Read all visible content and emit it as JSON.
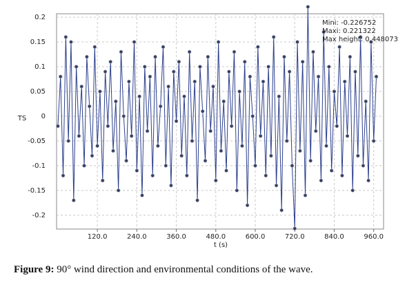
{
  "chart_data": {
    "type": "line",
    "y_label": "TS",
    "x_label": "t (s)",
    "annotations": [
      "Mini: -0.226752",
      "Maxi: 0.221322",
      "Max height: 0.448073"
    ],
    "caption_label": "Figure 9:",
    "caption_text": "90° wind direction and environmental conditions of the wave.",
    "xlim": [
      -4,
      990
    ],
    "ylim": [
      -0.228,
      0.207
    ],
    "grid": true,
    "xticks": [
      {
        "value": 120,
        "label": "120.0"
      },
      {
        "value": 240,
        "label": "240.0"
      },
      {
        "value": 360,
        "label": "360.0"
      },
      {
        "value": 480,
        "label": "480.0"
      },
      {
        "value": 600,
        "label": "600.0"
      },
      {
        "value": 720,
        "label": "720.0"
      },
      {
        "value": 840,
        "label": "840.0"
      },
      {
        "value": 960,
        "label": "960.0"
      }
    ],
    "yticks": [
      0.2,
      0.15,
      0.1,
      0.05,
      0,
      -0.05,
      -0.1,
      -0.15,
      -0.2
    ],
    "x": [
      0,
      8,
      16,
      24,
      32,
      40,
      48,
      56,
      64,
      72,
      80,
      88,
      96,
      104,
      112,
      120,
      128,
      136,
      144,
      152,
      160,
      168,
      176,
      184,
      192,
      200,
      208,
      216,
      224,
      232,
      240,
      248,
      256,
      264,
      272,
      280,
      288,
      296,
      304,
      312,
      320,
      328,
      336,
      344,
      352,
      360,
      368,
      376,
      384,
      392,
      400,
      408,
      416,
      424,
      432,
      440,
      448,
      456,
      464,
      472,
      480,
      488,
      496,
      504,
      512,
      520,
      528,
      536,
      544,
      552,
      560,
      568,
      576,
      584,
      592,
      600,
      608,
      616,
      624,
      632,
      640,
      648,
      656,
      664,
      672,
      680,
      688,
      696,
      704,
      712,
      720,
      728,
      736,
      744,
      752,
      760,
      768,
      776,
      784,
      792,
      800,
      808,
      816,
      824,
      832,
      840,
      848,
      856,
      864,
      872,
      880,
      888,
      896,
      904,
      912,
      920,
      928,
      936,
      944,
      952,
      960,
      968
    ],
    "series": [
      {
        "color": "#2b3f8c",
        "values": [
          -0.02,
          0.08,
          -0.12,
          0.16,
          -0.05,
          0.15,
          -0.17,
          0.1,
          -0.04,
          0.06,
          -0.1,
          0.12,
          0.02,
          -0.08,
          0.14,
          -0.06,
          0.05,
          -0.13,
          0.09,
          -0.02,
          0.11,
          -0.07,
          0.03,
          -0.15,
          0.13,
          0.0,
          -0.09,
          0.07,
          -0.04,
          0.15,
          -0.11,
          0.04,
          -0.16,
          0.1,
          -0.03,
          0.08,
          -0.12,
          0.12,
          -0.06,
          0.02,
          0.14,
          -0.1,
          0.06,
          -0.14,
          0.09,
          -0.01,
          0.11,
          -0.08,
          0.04,
          -0.12,
          0.13,
          -0.05,
          0.07,
          -0.17,
          0.1,
          0.01,
          -0.09,
          0.12,
          -0.03,
          0.06,
          -0.13,
          0.15,
          -0.07,
          0.03,
          -0.11,
          0.09,
          -0.02,
          0.13,
          -0.15,
          0.05,
          -0.06,
          0.11,
          -0.18,
          0.08,
          0.0,
          -0.1,
          0.14,
          -0.04,
          0.07,
          -0.12,
          0.1,
          -0.08,
          0.16,
          -0.14,
          0.04,
          -0.19,
          0.12,
          -0.05,
          0.09,
          -0.1,
          -0.227,
          0.15,
          -0.07,
          0.11,
          -0.16,
          0.221,
          -0.09,
          0.13,
          -0.03,
          0.08,
          -0.13,
          0.17,
          -0.06,
          0.1,
          -0.11,
          0.05,
          -0.02,
          0.14,
          -0.12,
          0.07,
          -0.04,
          0.12,
          -0.15,
          0.09,
          -0.08,
          0.16,
          -0.1,
          0.03,
          -0.13,
          0.15,
          -0.05,
          0.08
        ]
      }
    ]
  }
}
